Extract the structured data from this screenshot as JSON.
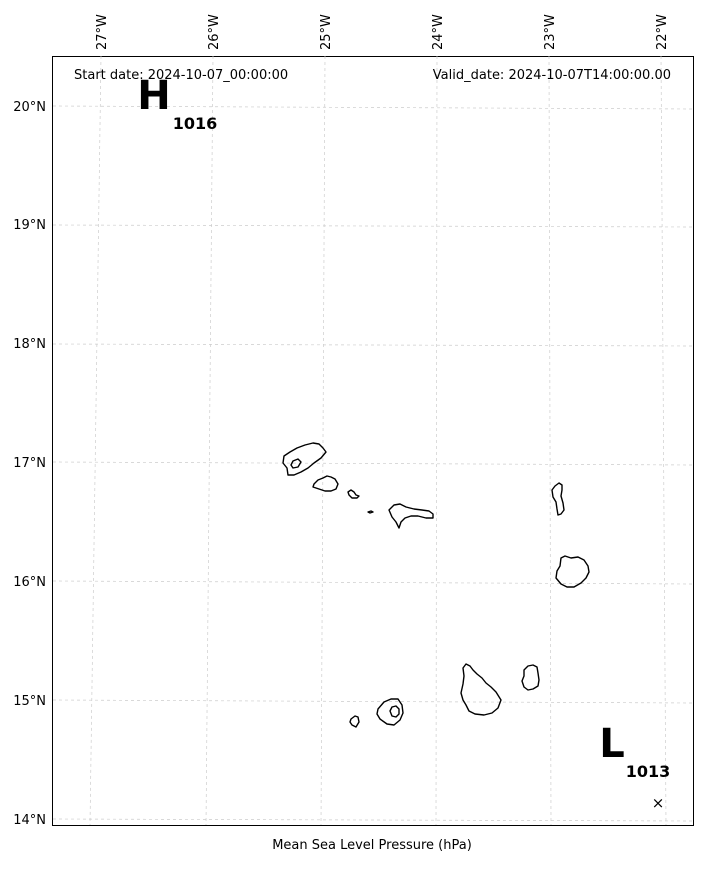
{
  "map": {
    "start_date": "Start date: 2024-10-07_00:00:00",
    "valid_date": "Valid_date: 2024-10-07T14:00:00.00",
    "footer_label": "Mean Sea Level Pressure (hPa)",
    "lon_ticks": [
      "27°W",
      "26°W",
      "25°W",
      "24°W",
      "23°W",
      "22°W"
    ],
    "lat_ticks": [
      "20°N",
      "19°N",
      "18°N",
      "17°N",
      "16°N",
      "15°N",
      "14°N"
    ],
    "high_center": {
      "letter": "H",
      "value": "1016"
    },
    "low_center": {
      "letter": "L",
      "value": "1013",
      "marker": "×"
    },
    "region": "Cape Verde Islands"
  }
}
